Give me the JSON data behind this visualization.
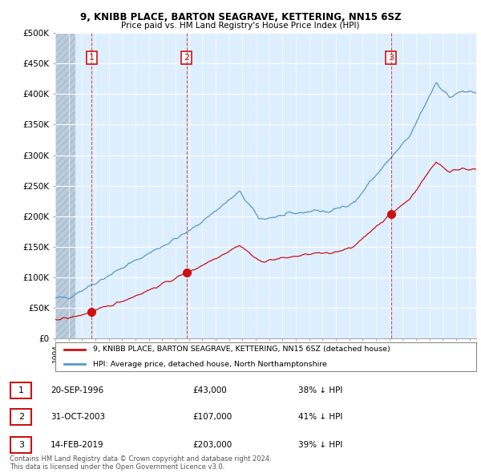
{
  "title1": "9, KNIBB PLACE, BARTON SEAGRAVE, KETTERING, NN15 6SZ",
  "title2": "Price paid vs. HM Land Registry's House Price Index (HPI)",
  "ylim": [
    0,
    500000
  ],
  "yticks": [
    0,
    50000,
    100000,
    150000,
    200000,
    250000,
    300000,
    350000,
    400000,
    450000,
    500000
  ],
  "ytick_labels": [
    "£0",
    "£50K",
    "£100K",
    "£150K",
    "£200K",
    "£250K",
    "£300K",
    "£350K",
    "£400K",
    "£450K",
    "£500K"
  ],
  "xlim": [
    1994.0,
    2025.5
  ],
  "sale_dates": [
    1996.72,
    2003.83,
    2019.12
  ],
  "sale_prices": [
    43000,
    107000,
    203000
  ],
  "sale_labels": [
    "1",
    "2",
    "3"
  ],
  "hpi_color": "#5599cc",
  "price_color": "#cc1111",
  "legend_price_label": "9, KNIBB PLACE, BARTON SEAGRAVE, KETTERING, NN15 6SZ (detached house)",
  "legend_hpi_label": "HPI: Average price, detached house, North Northamptonshire",
  "table_rows": [
    [
      "1",
      "20-SEP-1996",
      "£43,000",
      "38% ↓ HPI"
    ],
    [
      "2",
      "31-OCT-2003",
      "£107,000",
      "41% ↓ HPI"
    ],
    [
      "3",
      "14-FEB-2019",
      "£203,000",
      "39% ↓ HPI"
    ]
  ],
  "footnote": "Contains HM Land Registry data © Crown copyright and database right 2024.\nThis data is licensed under the Open Government Licence v3.0.",
  "plot_bg_color": "#ddeeff",
  "hatch_left_end": 1995.5
}
